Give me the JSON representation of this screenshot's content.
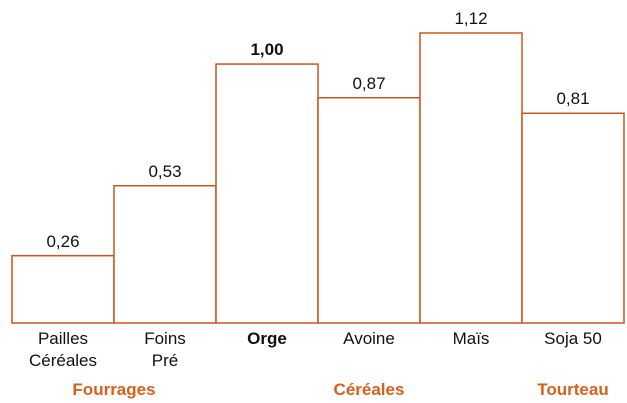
{
  "chart_data": {
    "type": "bar",
    "categories": [
      "Pailles\nCéréales",
      "Foins\nPré",
      "Orge",
      "Avoine",
      "Maïs",
      "Soja 50"
    ],
    "values": [
      0.26,
      0.53,
      1.0,
      0.87,
      1.12,
      0.81
    ],
    "value_labels": [
      "0,26",
      "0,53",
      "1,00",
      "0,87",
      "1,12",
      "0,81"
    ],
    "color": "#c8561c",
    "group_color": "#d6601e",
    "highlight_index": 2,
    "groups": [
      {
        "name": "Fourrages",
        "span": 2
      },
      {
        "name": "Céréales",
        "span": 3
      },
      {
        "name": "Tourteau",
        "span": 1
      }
    ]
  }
}
